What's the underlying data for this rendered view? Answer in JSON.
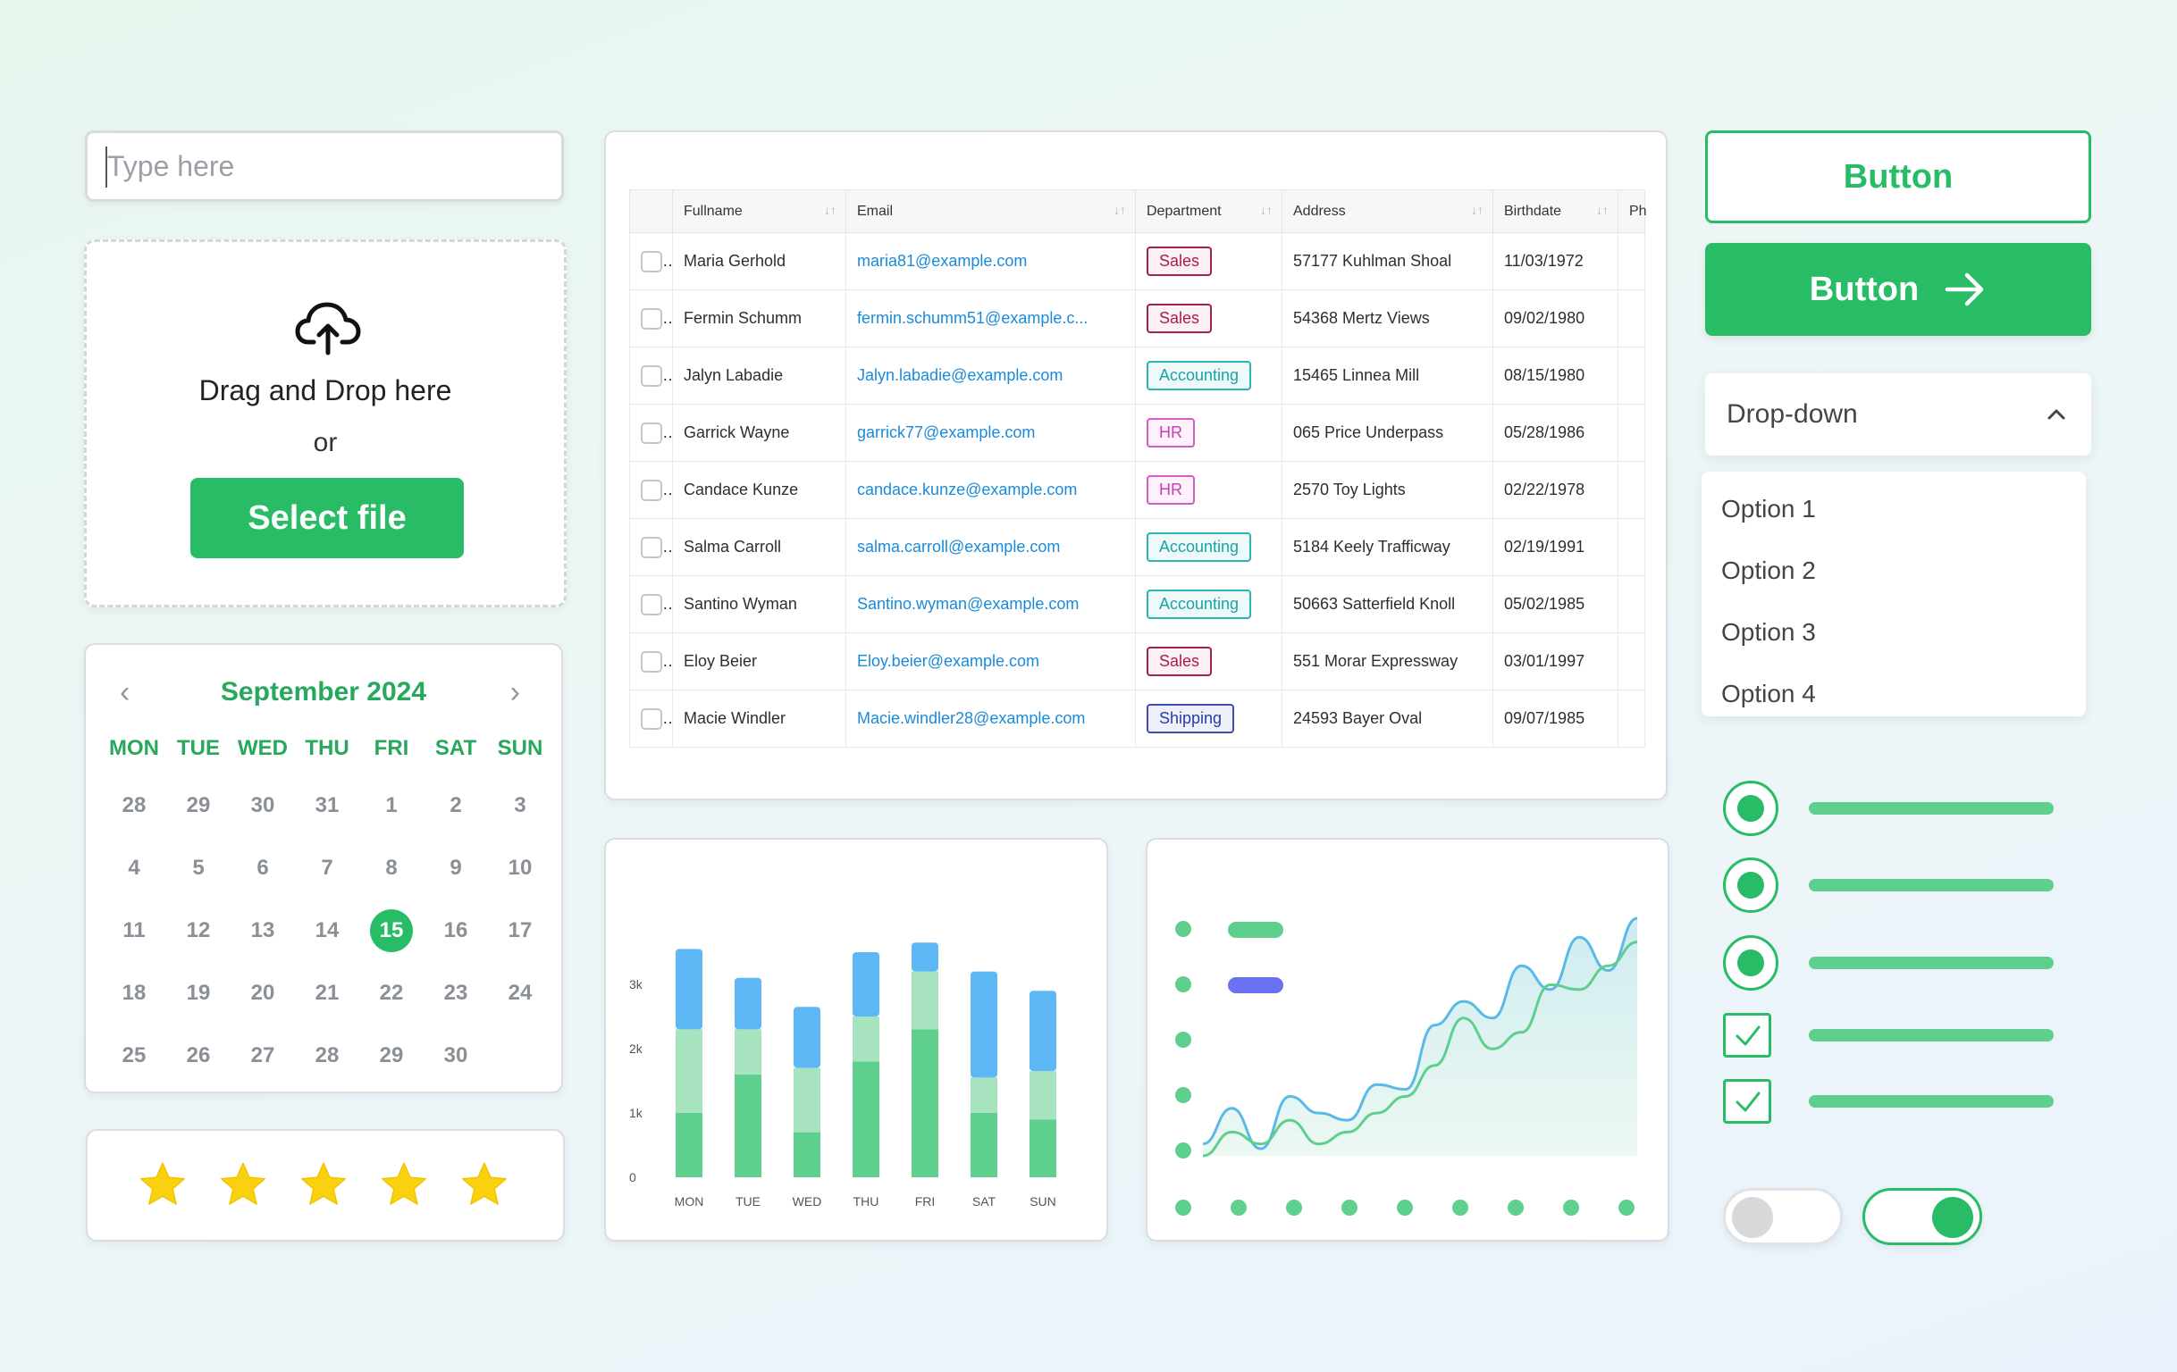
{
  "input": {
    "placeholder": "Type here"
  },
  "upload": {
    "drag_text": "Drag and Drop here",
    "or_text": "or",
    "button_label": "Select file"
  },
  "calendar": {
    "title": "September 2024",
    "prev": "‹",
    "next": "›",
    "weekdays": [
      "MON",
      "TUE",
      "WED",
      "THU",
      "FRI",
      "SAT",
      "SUN"
    ],
    "days": [
      "28",
      "29",
      "30",
      "31",
      "1",
      "2",
      "3",
      "4",
      "5",
      "6",
      "7",
      "8",
      "9",
      "10",
      "11",
      "12",
      "13",
      "14",
      "15",
      "16",
      "17",
      "18",
      "19",
      "20",
      "21",
      "22",
      "23",
      "24",
      "25",
      "26",
      "27",
      "28",
      "29",
      "30"
    ],
    "selected_day": "15"
  },
  "rating": {
    "stars": 5,
    "value": 5
  },
  "table": {
    "columns": [
      "Fullname",
      "Email",
      "Department",
      "Address",
      "Birthdate",
      "Ph"
    ],
    "rows": [
      {
        "name": "Maria Gerhold",
        "email": "maria81@example.com",
        "dept": "Sales",
        "address": "57177 Kuhlman Shoal",
        "birth": "11/03/1972"
      },
      {
        "name": "Fermin Schumm",
        "email": "fermin.schumm51@example.c...",
        "dept": "Sales",
        "address": "54368 Mertz Views",
        "birth": "09/02/1980"
      },
      {
        "name": "Jalyn Labadie",
        "email": "Jalyn.labadie@example.com",
        "dept": "Accounting",
        "address": "15465 Linnea Mill",
        "birth": "08/15/1980"
      },
      {
        "name": "Garrick Wayne",
        "email": "garrick77@example.com",
        "dept": "HR",
        "address": "065 Price Underpass",
        "birth": "05/28/1986"
      },
      {
        "name": "Candace Kunze",
        "email": "candace.kunze@example.com",
        "dept": "HR",
        "address": "2570 Toy Lights",
        "birth": "02/22/1978"
      },
      {
        "name": "Salma Carroll",
        "email": "salma.carroll@example.com",
        "dept": "Accounting",
        "address": "5184 Keely Trafficway",
        "birth": "02/19/1991"
      },
      {
        "name": "Santino Wyman",
        "email": "Santino.wyman@example.com",
        "dept": "Accounting",
        "address": "50663 Satterfield Knoll",
        "birth": "05/02/1985"
      },
      {
        "name": "Eloy Beier",
        "email": "Eloy.beier@example.com",
        "dept": "Sales",
        "address": "551 Morar Expressway",
        "birth": "03/01/1997"
      },
      {
        "name": "Macie Windler",
        "email": "Macie.windler28@example.com",
        "dept": "Shipping",
        "address": "24593 Bayer Oval",
        "birth": "09/07/1985"
      }
    ]
  },
  "chart_data": [
    {
      "type": "bar",
      "stacked": true,
      "categories": [
        "MON",
        "TUE",
        "WED",
        "THU",
        "FRI",
        "SAT",
        "SUN"
      ],
      "y_ticks": [
        "0",
        "1k",
        "2k",
        "3k"
      ],
      "ylim": [
        0,
        3500
      ],
      "series": [
        {
          "color": "#5ecf8d",
          "values": [
            1000,
            1600,
            700,
            1800,
            2300,
            1000,
            900
          ]
        },
        {
          "color": "#a8e3c0",
          "values": [
            1300,
            700,
            1000,
            700,
            900,
            550,
            750
          ]
        },
        {
          "color": "#5fb8f6",
          "values": [
            1250,
            800,
            950,
            1000,
            450,
            1650,
            1250
          ]
        }
      ]
    },
    {
      "type": "area",
      "legend_colors": [
        "#5ecf8d",
        "#6b72f2"
      ],
      "x_points": 9,
      "series": [
        {
          "color": "#5ab9e6",
          "values": [
            5,
            20,
            3,
            25,
            18,
            15,
            30,
            28,
            55,
            65,
            58,
            80,
            70,
            92,
            78,
            100
          ]
        },
        {
          "color": "#5ecf8d",
          "values": [
            0,
            10,
            5,
            15,
            5,
            10,
            18,
            25,
            38,
            58,
            45,
            52,
            72,
            70,
            80,
            90
          ]
        }
      ]
    }
  ],
  "buttons": {
    "outline_label": "Button",
    "solid_label": "Button"
  },
  "dropdown": {
    "label": "Drop-down",
    "options": [
      "Option 1",
      "Option 2",
      "Option 3",
      "Option 4"
    ]
  },
  "radios": [
    true,
    true,
    true
  ],
  "checkboxes": [
    true,
    true
  ],
  "toggles": [
    false,
    true
  ],
  "colors": {
    "accent": "#27bc65",
    "star": "#f9d10e"
  }
}
